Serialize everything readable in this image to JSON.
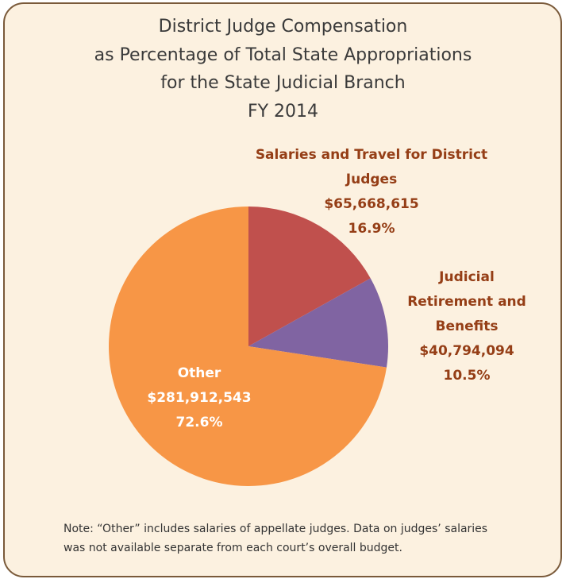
{
  "chart_data": {
    "type": "pie",
    "title": [
      "District Judge Compensation",
      "as Percentage of Total State Appropriations",
      "for the State Judicial Branch",
      "FY 2014"
    ],
    "categories": [
      "Salaries and Travel for District Judges",
      "Judicial Retirement and Benefits",
      "Other"
    ],
    "values": [
      65668615,
      40794094,
      281912543
    ],
    "value_labels": [
      "$65,668,615",
      "$40,794,094",
      "$281,912,543"
    ],
    "percents": [
      16.9,
      10.5,
      72.6
    ],
    "percent_labels": [
      "16.9%",
      "10.5%",
      "72.6%"
    ],
    "colors": [
      "#c0504d",
      "#8064a2",
      "#f79646"
    ],
    "note": "Note: “Other” includes salaries of appellate judges. Data on judges’ salaries was not available separate from each court’s overall budget."
  }
}
